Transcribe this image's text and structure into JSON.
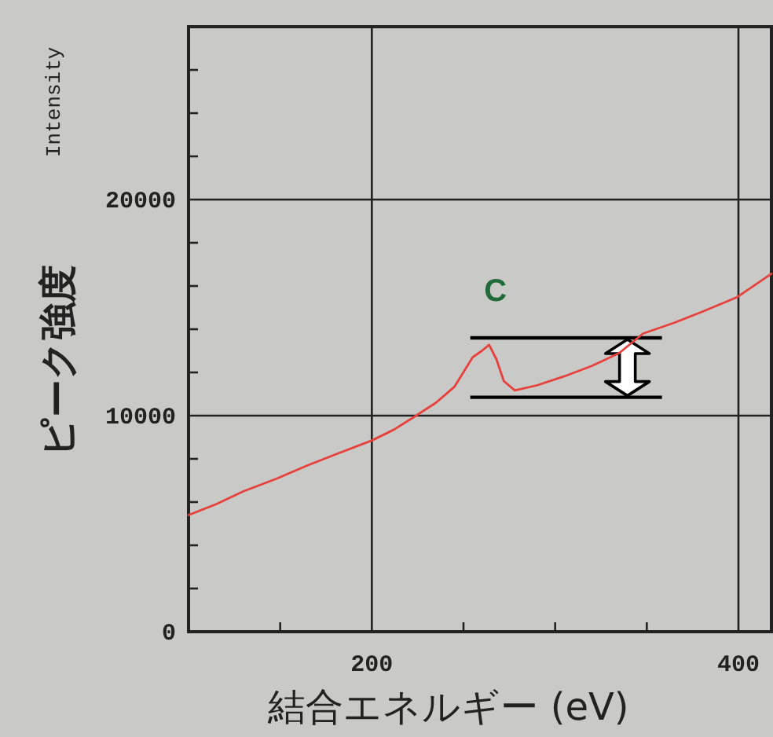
{
  "chart_data": {
    "type": "line",
    "xlabel": "結合エネルギー (eV)",
    "ylabel": "ピーク強度",
    "annotations": [
      "Intensity",
      {
        "text": "C",
        "x": 264,
        "y": 13280
      }
    ],
    "x": [
      100,
      115,
      130,
      148,
      165,
      180,
      200,
      212,
      222,
      235,
      245,
      255,
      260,
      264,
      268,
      272,
      278,
      290,
      305,
      320,
      335,
      348,
      365,
      380,
      399,
      418
    ],
    "series": [
      {
        "color": "#e8413c",
        "values": [
          5400,
          5900,
          6500,
          7080,
          7700,
          8200,
          8850,
          9350,
          9880,
          10600,
          11330,
          12700,
          13000,
          13280,
          12600,
          11600,
          11170,
          11400,
          11820,
          12300,
          12900,
          13800,
          14300,
          14800,
          15470,
          16570
        ]
      }
    ],
    "ref_lines": [
      {
        "axis": "y",
        "value": 13600,
        "label": null,
        "color": "#000000"
      },
      {
        "axis": "y",
        "value": 10850,
        "label": null,
        "color": "#000000"
      }
    ],
    "xlim": [
      100,
      418
    ],
    "ylim": [
      0,
      28000
    ],
    "xticks": [
      {
        "value": 150,
        "label": null
      },
      200,
      {
        "value": 250,
        "label": null
      },
      {
        "value": 300,
        "label": null
      },
      {
        "value": 350,
        "label": null
      },
      400
    ],
    "yticks": [
      0,
      {
        "value": 2000,
        "label": null
      },
      {
        "value": 4000,
        "label": null
      },
      {
        "value": 6000,
        "label": null
      },
      {
        "value": 8000,
        "label": null
      },
      10000,
      {
        "value": 12000,
        "label": null
      },
      {
        "value": 14000,
        "label": null
      },
      {
        "value": 16000,
        "label": null
      },
      {
        "value": 18000,
        "label": null
      },
      20000,
      {
        "value": 22000,
        "label": null
      },
      {
        "value": 24000,
        "label": null
      },
      {
        "value": 26000,
        "label": null
      }
    ],
    "grid": true,
    "marker": "none",
    "line_style": "solid"
  }
}
